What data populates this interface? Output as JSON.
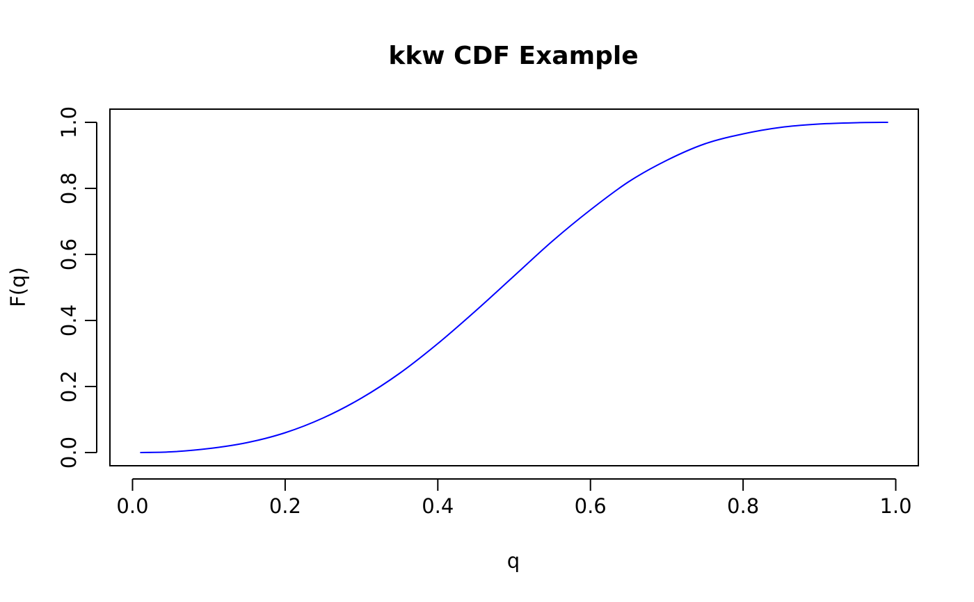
{
  "chart_data": {
    "type": "line",
    "title": "kkw CDF Example",
    "xlabel": "q",
    "ylabel": "F(q)",
    "xlim": [
      -0.0296,
      1.0296
    ],
    "ylim": [
      -0.04,
      1.04
    ],
    "xticks": [
      0.0,
      0.2,
      0.4,
      0.6,
      0.8,
      1.0
    ],
    "xtick_labels": [
      "0.0",
      "0.2",
      "0.4",
      "0.6",
      "0.8",
      "1.0"
    ],
    "yticks": [
      0.0,
      0.2,
      0.4,
      0.6,
      0.8,
      1.0
    ],
    "ytick_labels": [
      "0.0",
      "0.2",
      "0.4",
      "0.6",
      "0.8",
      "1.0"
    ],
    "grid": false,
    "series": [
      {
        "color": "#0000ff",
        "x": [
          0.01,
          0.05,
          0.1,
          0.15,
          0.2,
          0.25,
          0.3,
          0.35,
          0.4,
          0.45,
          0.5,
          0.55,
          0.6,
          0.65,
          0.7,
          0.75,
          0.8,
          0.85,
          0.9,
          0.95,
          0.99
        ],
        "y": [
          0.0,
          0.002,
          0.012,
          0.03,
          0.06,
          0.105,
          0.165,
          0.24,
          0.33,
          0.43,
          0.535,
          0.64,
          0.735,
          0.82,
          0.885,
          0.935,
          0.965,
          0.985,
          0.995,
          0.999,
          1.0
        ]
      }
    ]
  }
}
